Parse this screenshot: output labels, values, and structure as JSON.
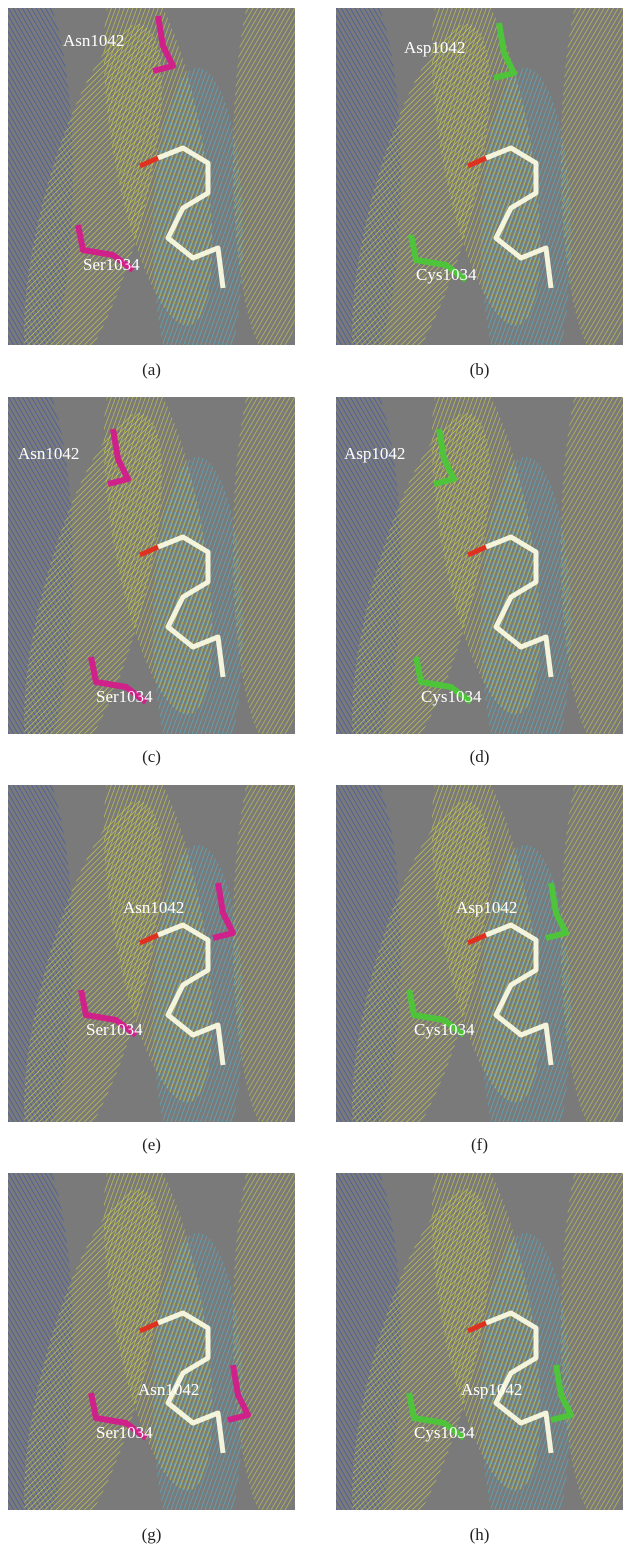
{
  "panels": [
    {
      "caption": "(a)",
      "labels": [
        "Asn1042",
        "Ser1034"
      ]
    },
    {
      "caption": "(b)",
      "labels": [
        "Asp1042",
        "Cys1034"
      ]
    },
    {
      "caption": "(c)",
      "labels": [
        "Asn1042",
        "Ser1034"
      ]
    },
    {
      "caption": "(d)",
      "labels": [
        "Asp1042",
        "Cys1034"
      ]
    },
    {
      "caption": "(e)",
      "labels": [
        "Asn1042",
        "Ser1034"
      ]
    },
    {
      "caption": "(f)",
      "labels": [
        "Asp1042",
        "Cys1034"
      ]
    },
    {
      "caption": "(g)",
      "labels": [
        "Asn1042",
        "Ser1034"
      ]
    },
    {
      "caption": "(h)",
      "labels": [
        "Asp1042",
        "Cys1034"
      ]
    }
  ]
}
